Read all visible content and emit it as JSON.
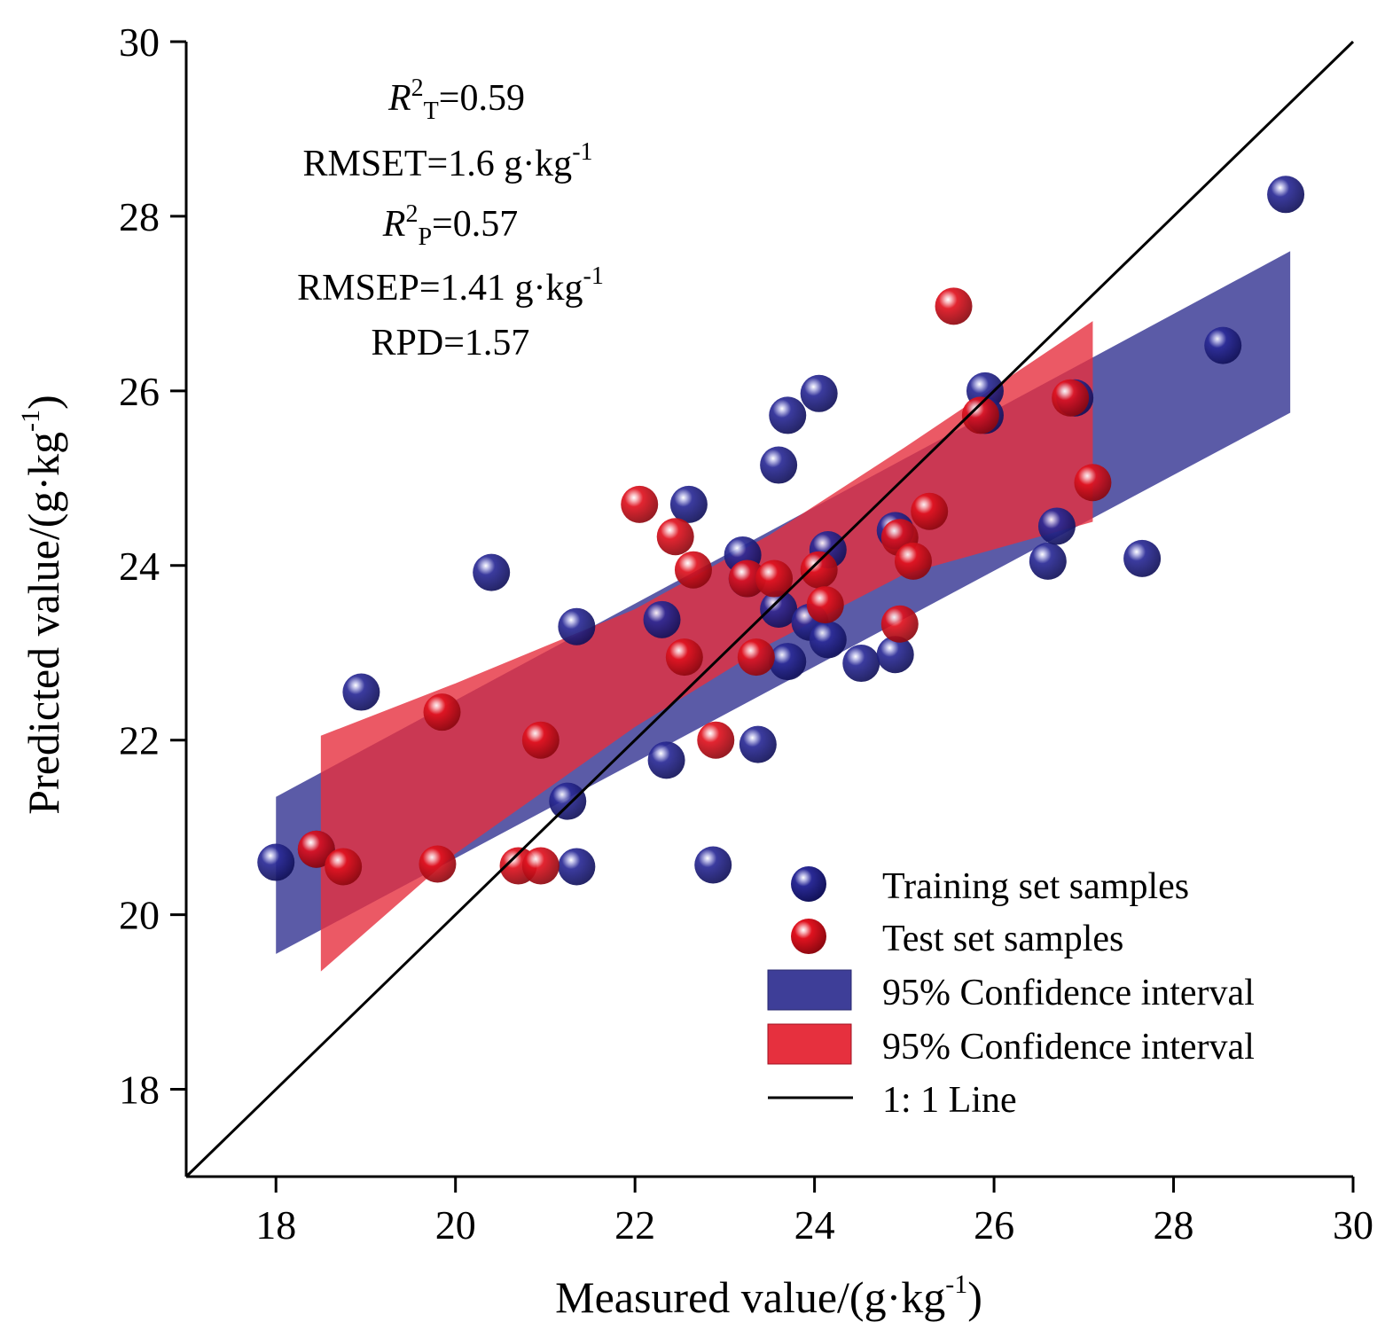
{
  "chart_data": {
    "type": "scatter",
    "xlabel": "Measured value/(g·kg",
    "xlabel_sup": "-1",
    "xlabel_close": ")",
    "ylabel": "Predicted value/(g·kg",
    "ylabel_sup": "-1",
    "ylabel_close": ")",
    "xlim": [
      17,
      30
    ],
    "ylim": [
      17,
      30
    ],
    "xticks": [
      18,
      20,
      22,
      24,
      26,
      28,
      30
    ],
    "yticks": [
      18,
      20,
      22,
      24,
      26,
      28,
      30
    ],
    "stats": {
      "r2t": {
        "r": "R",
        "sup": "2",
        "sub": "T",
        "value": "=0.59"
      },
      "rmset": {
        "text": "RMSET=1.6 g·kg",
        "sup": "-1"
      },
      "r2p": {
        "r": "R",
        "sup": "2",
        "sub": "P",
        "value": "=0.57"
      },
      "rmsep": {
        "text": "RMSEP=1.41 g·kg",
        "sup": "-1"
      },
      "rpd": {
        "text": "RPD=1.57"
      }
    },
    "colors": {
      "training": "#1f1f8a",
      "training_highlight": "#9a9ad8",
      "test": "#d8101e",
      "test_highlight": "#f6a8ae",
      "training_ci": "#3e3e98",
      "test_ci": "#e6303e",
      "line": "#000000"
    },
    "legend": {
      "placement": "bottom-right",
      "training": "Training set samples",
      "test": "Test set samples",
      "training_ci": "95% Confidence interval",
      "test_ci": "95% Confidence interval",
      "line": "1: 1 Line"
    },
    "training_ci_band": {
      "x": [
        18.0,
        29.3
      ],
      "lower": [
        19.55,
        25.75
      ],
      "upper": [
        21.35,
        27.6
      ]
    },
    "test_ci_band": {
      "x": [
        18.5,
        20.0,
        22.0,
        23.5,
        25.0,
        27.1
      ],
      "lower": [
        19.35,
        20.7,
        22.15,
        23.1,
        23.9,
        24.5
      ],
      "upper": [
        22.05,
        22.65,
        23.5,
        24.35,
        25.35,
        26.8
      ]
    },
    "series": [
      {
        "name": "Training set samples",
        "points": [
          [
            18.0,
            20.6
          ],
          [
            18.45,
            20.75
          ],
          [
            18.95,
            22.55
          ],
          [
            20.4,
            23.92
          ],
          [
            21.25,
            21.3
          ],
          [
            21.35,
            23.3
          ],
          [
            21.35,
            20.55
          ],
          [
            22.3,
            23.38
          ],
          [
            22.35,
            21.77
          ],
          [
            22.6,
            24.7
          ],
          [
            22.87,
            20.57
          ],
          [
            23.2,
            24.12
          ],
          [
            23.25,
            23.85
          ],
          [
            23.37,
            21.95
          ],
          [
            23.6,
            25.15
          ],
          [
            23.6,
            23.5
          ],
          [
            23.7,
            22.9
          ],
          [
            23.7,
            25.72
          ],
          [
            24.05,
            25.97
          ],
          [
            23.95,
            23.35
          ],
          [
            24.15,
            23.15
          ],
          [
            24.15,
            24.18
          ],
          [
            24.52,
            22.88
          ],
          [
            24.9,
            24.4
          ],
          [
            24.9,
            22.98
          ],
          [
            25.9,
            26.0
          ],
          [
            25.9,
            25.72
          ],
          [
            26.6,
            24.05
          ],
          [
            26.7,
            24.45
          ],
          [
            26.9,
            25.92
          ],
          [
            27.65,
            24.08
          ],
          [
            28.55,
            26.52
          ],
          [
            29.25,
            28.25
          ]
        ]
      },
      {
        "name": "Test set samples",
        "points": [
          [
            18.45,
            20.75
          ],
          [
            18.75,
            20.55
          ],
          [
            19.8,
            20.58
          ],
          [
            19.85,
            22.32
          ],
          [
            20.7,
            20.56
          ],
          [
            20.95,
            20.56
          ],
          [
            20.95,
            22.0
          ],
          [
            22.05,
            24.7
          ],
          [
            22.45,
            24.33
          ],
          [
            22.55,
            22.95
          ],
          [
            22.65,
            23.95
          ],
          [
            22.9,
            22.0
          ],
          [
            23.25,
            23.85
          ],
          [
            23.35,
            22.95
          ],
          [
            23.55,
            23.85
          ],
          [
            24.05,
            23.95
          ],
          [
            24.12,
            23.55
          ],
          [
            24.95,
            24.32
          ],
          [
            24.95,
            23.33
          ],
          [
            25.1,
            24.05
          ],
          [
            25.28,
            24.62
          ],
          [
            25.55,
            26.97
          ],
          [
            25.85,
            25.72
          ],
          [
            26.85,
            25.92
          ],
          [
            27.1,
            24.95
          ]
        ]
      }
    ]
  }
}
